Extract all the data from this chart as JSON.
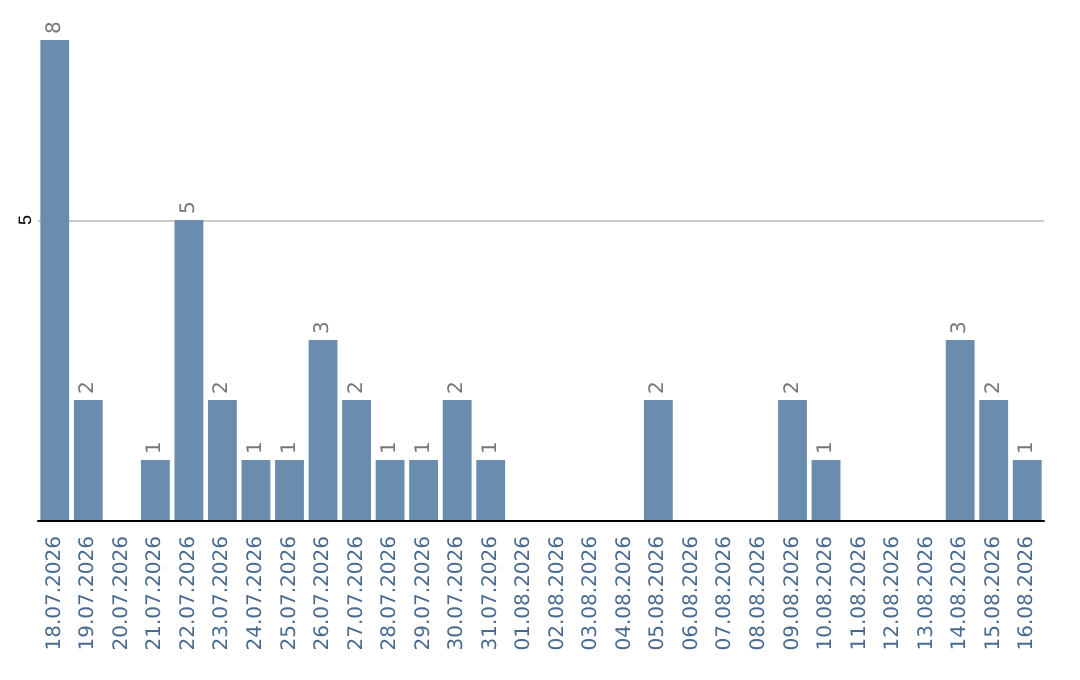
{
  "chart_data": {
    "type": "bar",
    "categories": [
      "18.07.2026",
      "19.07.2026",
      "20.07.2026",
      "21.07.2026",
      "22.07.2026",
      "23.07.2026",
      "24.07.2026",
      "25.07.2026",
      "26.07.2026",
      "27.07.2026",
      "28.07.2026",
      "29.07.2026",
      "30.07.2026",
      "31.07.2026",
      "01.08.2026",
      "02.08.2026",
      "03.08.2026",
      "04.08.2026",
      "05.08.2026",
      "06.08.2026",
      "07.08.2026",
      "08.08.2026",
      "09.08.2026",
      "10.08.2026",
      "11.08.2026",
      "12.08.2026",
      "13.08.2026",
      "14.08.2026",
      "15.08.2026",
      "16.08.2026"
    ],
    "values": [
      8,
      2,
      0,
      1,
      5,
      2,
      1,
      1,
      3,
      2,
      1,
      1,
      2,
      1,
      0,
      0,
      0,
      0,
      2,
      0,
      0,
      0,
      2,
      1,
      0,
      0,
      0,
      3,
      2,
      1
    ],
    "value_labels": [
      "8",
      "2",
      null,
      "1",
      "5",
      "2",
      "1",
      "1",
      "3",
      "2",
      "1",
      "1",
      "2",
      "1",
      null,
      null,
      null,
      null,
      "2",
      null,
      null,
      null,
      "2",
      "1",
      null,
      null,
      null,
      "3",
      "2",
      "1"
    ],
    "color": "#6a8caf",
    "ylim": [
      0,
      8
    ],
    "yticks": [
      5
    ],
    "grid": "y"
  }
}
